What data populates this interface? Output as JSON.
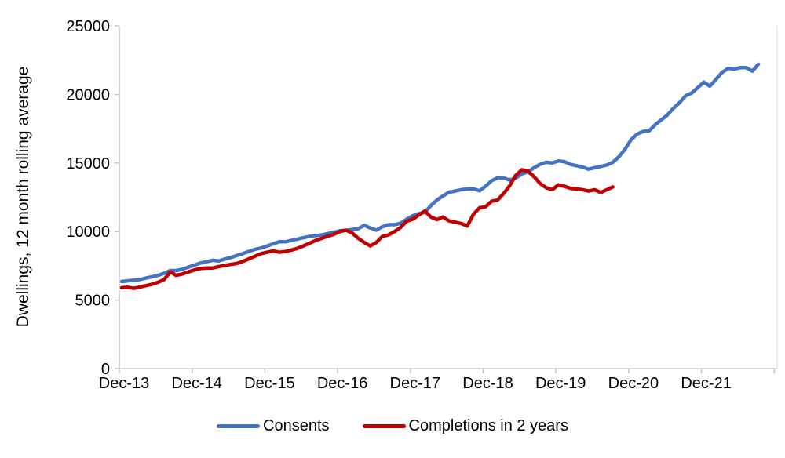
{
  "chart_data": {
    "type": "line",
    "title": "",
    "ylabel": "Dwellings, 12 month rolling average",
    "xlabel": "",
    "ylim": [
      0,
      25000
    ],
    "y_ticks": [
      0,
      5000,
      10000,
      15000,
      20000,
      25000
    ],
    "x_tick_labels": [
      "Dec-13",
      "Dec-14",
      "Dec-15",
      "Dec-16",
      "Dec-17",
      "Dec-18",
      "Dec-19",
      "Dec-20",
      "Dec-21"
    ],
    "x_unit": "month index from Dec-2013 (monthly data)",
    "grid": false,
    "legend_position": "bottom",
    "axis_color": "#BFBFBF",
    "plot_right_border_color": "#D9D9D9",
    "series": [
      {
        "name": "Consents",
        "color": "#4472C4",
        "start": "Dec-13",
        "end": "Sep-22",
        "values": [
          6350,
          6400,
          6450,
          6500,
          6600,
          6700,
          6800,
          6950,
          7150,
          7150,
          7250,
          7400,
          7550,
          7700,
          7800,
          7900,
          7850,
          8000,
          8100,
          8250,
          8400,
          8550,
          8700,
          8800,
          8950,
          9100,
          9250,
          9250,
          9350,
          9450,
          9550,
          9650,
          9700,
          9750,
          9850,
          9950,
          10050,
          10080,
          10150,
          10200,
          10450,
          10250,
          10100,
          10350,
          10500,
          10500,
          10600,
          10900,
          11150,
          11300,
          11400,
          11900,
          12300,
          12600,
          12870,
          12950,
          13050,
          13100,
          13120,
          12970,
          13300,
          13700,
          13920,
          13900,
          13750,
          13900,
          14200,
          14350,
          14650,
          14900,
          15050,
          15000,
          15150,
          15100,
          14900,
          14800,
          14700,
          14550,
          14650,
          14750,
          14850,
          15050,
          15450,
          16000,
          16700,
          17100,
          17300,
          17350,
          17800,
          18150,
          18500,
          19000,
          19400,
          19900,
          20100,
          20500,
          20900,
          20600,
          21100,
          21600,
          21900,
          21850,
          21950,
          21950,
          21700,
          22200
        ]
      },
      {
        "name": "Completions in 2 years",
        "color": "#C00000",
        "start": "Dec-13",
        "end": "Sep-20",
        "values": [
          5900,
          5930,
          5850,
          5950,
          6050,
          6150,
          6300,
          6500,
          7050,
          6800,
          6900,
          7050,
          7200,
          7300,
          7340,
          7340,
          7440,
          7530,
          7600,
          7670,
          7820,
          8010,
          8200,
          8390,
          8490,
          8580,
          8490,
          8540,
          8650,
          8770,
          8960,
          9150,
          9350,
          9500,
          9650,
          9800,
          10000,
          10100,
          9900,
          9500,
          9200,
          8950,
          9200,
          9650,
          9750,
          10000,
          10300,
          10750,
          10900,
          11200,
          11500,
          11050,
          10870,
          11060,
          10770,
          10680,
          10580,
          10400,
          11250,
          11730,
          11800,
          12200,
          12300,
          12780,
          13350,
          14100,
          14500,
          14400,
          14000,
          13500,
          13200,
          13050,
          13400,
          13300,
          13150,
          13100,
          13050,
          12950,
          13050,
          12850,
          13050,
          13250
        ]
      }
    ]
  }
}
